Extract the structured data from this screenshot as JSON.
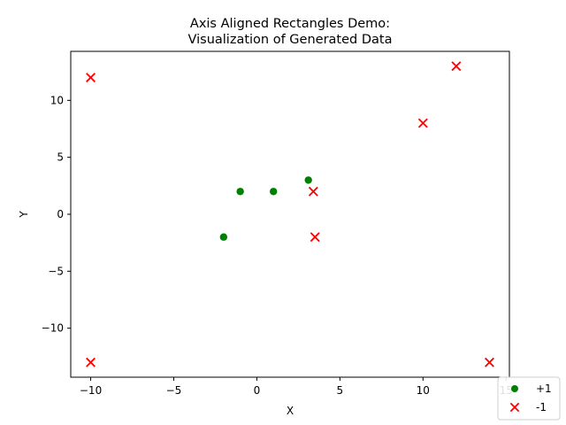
{
  "chart_data": {
    "type": "scatter",
    "title": [
      "Axis Aligned Rectangles Demo:",
      "Visualization of Generated Data"
    ],
    "xlabel": "X",
    "ylabel": "Y",
    "xlim": [
      -11.2,
      15.2
    ],
    "ylim": [
      -14.3,
      14.3
    ],
    "xticks": [
      -10,
      -5,
      0,
      5,
      10,
      15
    ],
    "yticks": [
      -10,
      -5,
      0,
      5,
      10
    ],
    "xtick_labels": [
      "−10",
      "−5",
      "0",
      "5",
      "10",
      "15"
    ],
    "ytick_labels": [
      "−10",
      "−5",
      "0",
      "5",
      "10"
    ],
    "grid": false,
    "legend_position": "bottom-right",
    "series": [
      {
        "name": "+1",
        "marker": "circle",
        "color": "#008000",
        "points": [
          {
            "x": -2,
            "y": -2
          },
          {
            "x": -1,
            "y": 2
          },
          {
            "x": 1,
            "y": 2
          },
          {
            "x": 3.1,
            "y": 3
          }
        ]
      },
      {
        "name": "-1",
        "marker": "x",
        "color": "#ff0000",
        "points": [
          {
            "x": -10,
            "y": 12
          },
          {
            "x": -10,
            "y": -13
          },
          {
            "x": 3.4,
            "y": 2
          },
          {
            "x": 3.5,
            "y": -2
          },
          {
            "x": 10,
            "y": 8
          },
          {
            "x": 12,
            "y": 13
          },
          {
            "x": 14,
            "y": -13
          }
        ]
      }
    ]
  }
}
